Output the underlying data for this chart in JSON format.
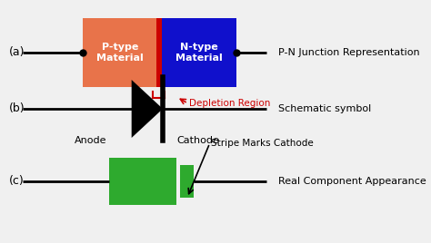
{
  "bg_color": "#f0f0f0",
  "label_a": "(a)",
  "label_b": "(b)",
  "label_c": "(c)",
  "p_type_color": "#E8734A",
  "n_type_color": "#1010CC",
  "junction_color": "#CC0000",
  "green_color": "#2EAA2E",
  "black_color": "#000000",
  "red_color": "#CC0000",
  "text_white": "#FFFFFF",
  "text_black": "#000000",
  "title_a": "P-N Junction Representation",
  "title_b": "Schematic symbol",
  "title_c": "Real Component Appearance",
  "label_ptype": "P-type\nMaterial",
  "label_ntype": "N-type\nMaterial",
  "label_depletion": "Depletion Region",
  "label_anode": "Anode",
  "label_cathode": "Cathode",
  "label_stripe": "Stripe Marks Cathode"
}
